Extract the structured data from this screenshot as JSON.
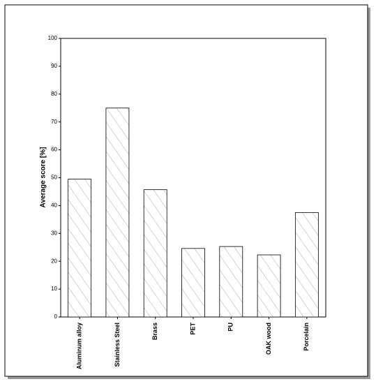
{
  "chart_data": {
    "type": "bar",
    "y_label": "Average score [%]",
    "categories": [
      "Aluminum alloy",
      "Stainless Steel",
      "Brass",
      "PET",
      "PU",
      "OAK wood",
      "Porcelain"
    ],
    "values": [
      49.5,
      75,
      45.7,
      24.6,
      25.3,
      22.3,
      37.5
    ],
    "color": "#000000",
    "ylim": [
      0,
      100
    ],
    "yticks": [
      0,
      10,
      20,
      30,
      40,
      50,
      60,
      70,
      80,
      90,
      100
    ]
  }
}
